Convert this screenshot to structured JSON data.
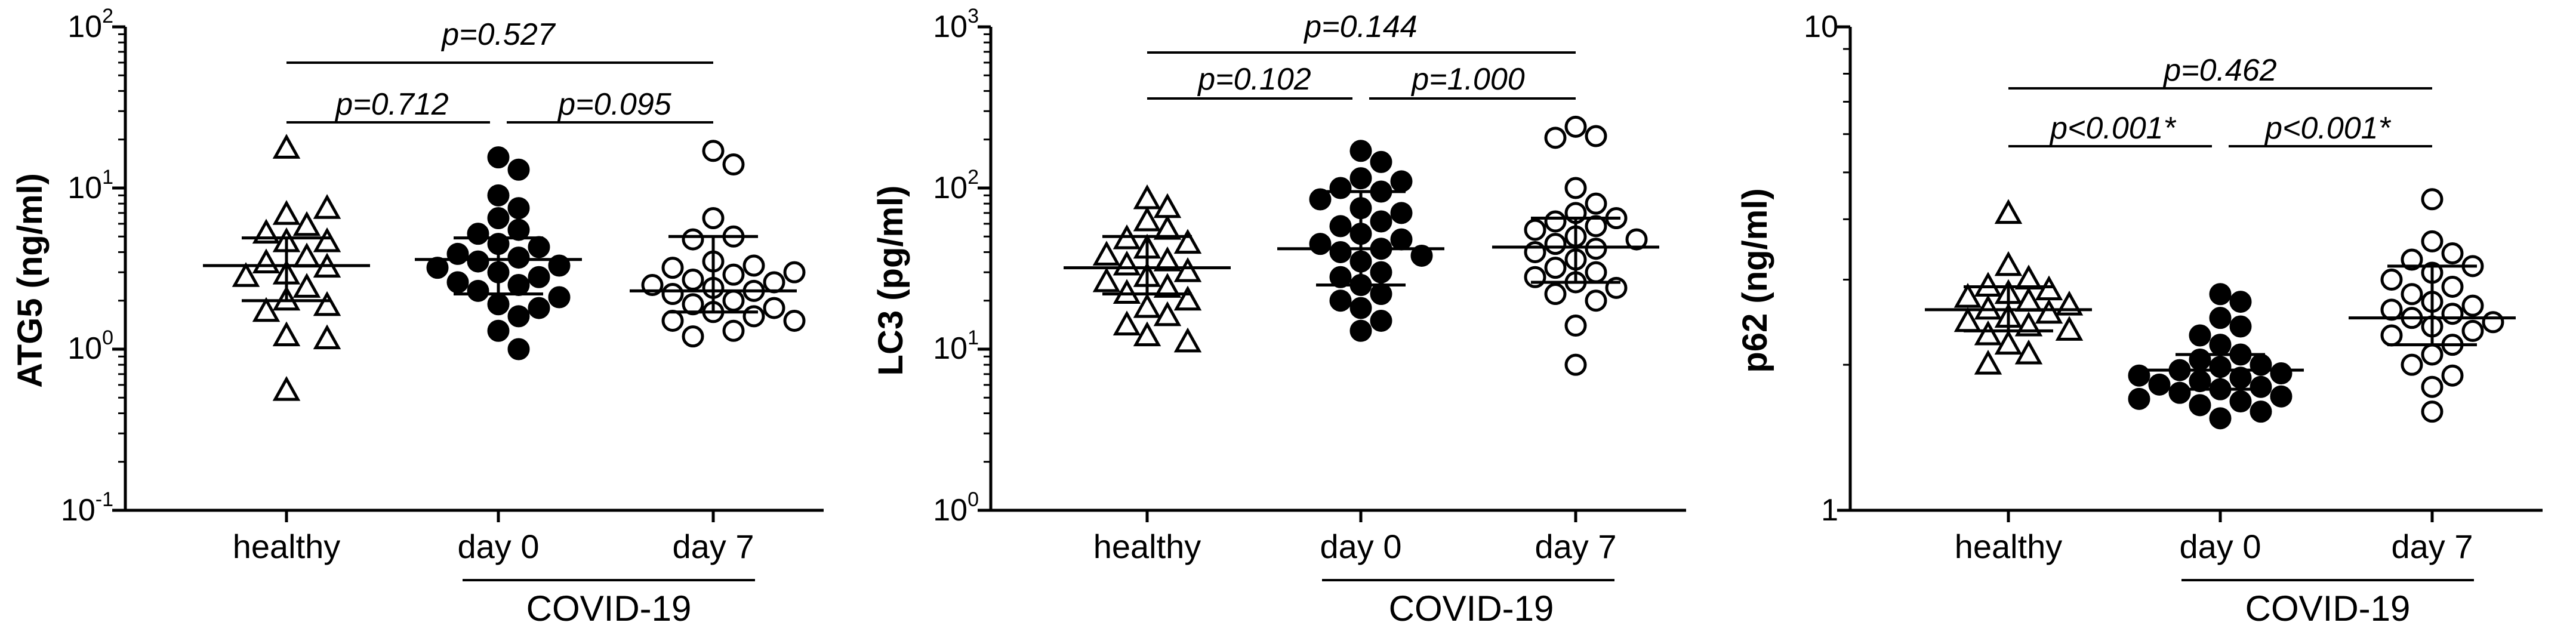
{
  "chart_data": [
    {
      "type": "scatter",
      "title": "",
      "ylabel": "ATG5 (ng/ml)",
      "yscale": "log",
      "ylim": [
        0.1,
        100
      ],
      "yticks": [
        {
          "value": 100,
          "base": "10",
          "exp": "2"
        },
        {
          "value": 10,
          "base": "10",
          "exp": "1"
        },
        {
          "value": 1,
          "base": "10",
          "exp": "0"
        },
        {
          "value": 0.1,
          "base": "10",
          "exp": "-1"
        }
      ],
      "categories": [
        "healthy",
        "day 0",
        "day 7"
      ],
      "group_label": "COVID-19",
      "group_span": [
        "day 0",
        "day 7"
      ],
      "series": [
        {
          "name": "healthy",
          "marker": "open-triangle",
          "values": [
            17.5,
            6.8,
            7.4,
            5.8,
            5.2,
            4.6,
            4.6,
            3.7,
            3.4,
            3.2,
            2.9,
            2.8,
            2.4,
            2.0,
            1.85,
            1.7,
            1.2,
            1.15,
            0.55
          ],
          "median": 3.3,
          "q1": 2.0,
          "q3": 4.9
        },
        {
          "name": "day 0",
          "marker": "filled-circle",
          "values": [
            15.5,
            13.0,
            9.0,
            7.5,
            6.5,
            5.5,
            5.2,
            4.5,
            4.3,
            3.9,
            3.7,
            3.5,
            3.3,
            3.2,
            3.0,
            2.8,
            2.6,
            2.5,
            2.3,
            2.1,
            1.9,
            1.8,
            1.6,
            1.3,
            1.0
          ],
          "median": 3.6,
          "q1": 2.2,
          "q3": 4.9
        },
        {
          "name": "day 7",
          "marker": "open-circle",
          "values": [
            17.0,
            14.0,
            6.5,
            5.0,
            4.8,
            3.5,
            3.3,
            3.2,
            3.0,
            2.9,
            2.7,
            2.6,
            2.5,
            2.4,
            2.3,
            2.2,
            2.0,
            1.9,
            1.8,
            1.7,
            1.6,
            1.5,
            1.5,
            1.3,
            1.2
          ],
          "median": 2.3,
          "q1": 1.7,
          "q3": 5.0
        }
      ],
      "comparisons": [
        {
          "from": "healthy",
          "to": "day 7",
          "label": "p=0.527"
        },
        {
          "from": "healthy",
          "to": "day 0",
          "label": "p=0.712"
        },
        {
          "from": "day 0",
          "to": "day 7",
          "label": "p=0.095"
        }
      ]
    },
    {
      "type": "scatter",
      "title": "",
      "ylabel": "LC3 (pg/ml)",
      "yscale": "log",
      "ylim": [
        1,
        1000
      ],
      "yticks": [
        {
          "value": 1000,
          "base": "10",
          "exp": "3"
        },
        {
          "value": 100,
          "base": "10",
          "exp": "2"
        },
        {
          "value": 10,
          "base": "10",
          "exp": "1"
        },
        {
          "value": 1,
          "base": "10",
          "exp": "0"
        }
      ],
      "categories": [
        "healthy",
        "day 0",
        "day 7"
      ],
      "group_label": "COVID-19",
      "group_span": [
        "day 0",
        "day 7"
      ],
      "series": [
        {
          "name": "healthy",
          "marker": "open-triangle",
          "values": [
            85,
            75,
            62,
            55,
            48,
            45,
            42,
            38,
            35,
            33,
            30,
            28,
            26,
            24,
            22,
            20,
            18,
            16,
            14,
            12,
            11
          ],
          "median": 32,
          "q1": 22,
          "q3": 50
        },
        {
          "name": "day 0",
          "marker": "filled-circle",
          "values": [
            170,
            145,
            115,
            110,
            100,
            95,
            85,
            75,
            70,
            62,
            58,
            52,
            48,
            45,
            42,
            40,
            38,
            35,
            30,
            28,
            25,
            22,
            20,
            18,
            15,
            13
          ],
          "median": 42,
          "q1": 25,
          "q3": 95
        },
        {
          "name": "day 7",
          "marker": "open-circle",
          "values": [
            240,
            210,
            205,
            100,
            80,
            70,
            65,
            62,
            58,
            55,
            50,
            48,
            45,
            42,
            40,
            36,
            32,
            30,
            28,
            26,
            24,
            22,
            20,
            14,
            8
          ],
          "median": 43,
          "q1": 26,
          "q3": 65
        }
      ],
      "comparisons": [
        {
          "from": "healthy",
          "to": "day 7",
          "label": "p=0.144"
        },
        {
          "from": "healthy",
          "to": "day 0",
          "label": "p=0.102"
        },
        {
          "from": "day 0",
          "to": "day 7",
          "label": "p=1.000"
        }
      ]
    },
    {
      "type": "scatter",
      "title": "",
      "ylabel": "p62 (ng/ml)",
      "yscale": "log",
      "ylim": [
        1,
        10
      ],
      "yticks": [
        {
          "value": 10,
          "base": "10",
          "exp": ""
        },
        {
          "value": 1,
          "base": "1",
          "exp": ""
        }
      ],
      "categories": [
        "healthy",
        "day 0",
        "day 7"
      ],
      "group_label": "COVID-19",
      "group_span": [
        "day 0",
        "day 7"
      ],
      "series": [
        {
          "name": "healthy",
          "marker": "open-triangle",
          "values": [
            4.1,
            3.2,
            3.0,
            2.9,
            2.85,
            2.8,
            2.75,
            2.7,
            2.65,
            2.6,
            2.55,
            2.5,
            2.45,
            2.4,
            2.35,
            2.3,
            2.2,
            2.1,
            2.0
          ],
          "median": 2.6,
          "q1": 2.35,
          "q3": 2.9
        },
        {
          "name": "day 0",
          "marker": "filled-circle",
          "values": [
            2.8,
            2.7,
            2.5,
            2.4,
            2.3,
            2.2,
            2.1,
            2.05,
            2.0,
            1.98,
            1.95,
            1.92,
            1.9,
            1.88,
            1.85,
            1.82,
            1.8,
            1.78,
            1.75,
            1.72,
            1.7,
            1.68,
            1.65,
            1.6,
            1.55
          ],
          "median": 1.95,
          "q1": 1.78,
          "q3": 2.1
        },
        {
          "name": "day 7",
          "marker": "open-circle",
          "values": [
            4.4,
            3.6,
            3.4,
            3.3,
            3.2,
            3.1,
            3.0,
            2.9,
            2.8,
            2.7,
            2.65,
            2.6,
            2.55,
            2.5,
            2.45,
            2.4,
            2.35,
            2.3,
            2.2,
            2.1,
            2.0,
            1.9,
            1.8,
            1.6
          ],
          "median": 2.5,
          "q1": 2.2,
          "q3": 3.2
        }
      ],
      "comparisons": [
        {
          "from": "healthy",
          "to": "day 7",
          "label": "p=0.462"
        },
        {
          "from": "healthy",
          "to": "day 0",
          "label": "p<0.001*"
        },
        {
          "from": "day 0",
          "to": "day 7",
          "label": "p<0.001*"
        }
      ]
    }
  ]
}
